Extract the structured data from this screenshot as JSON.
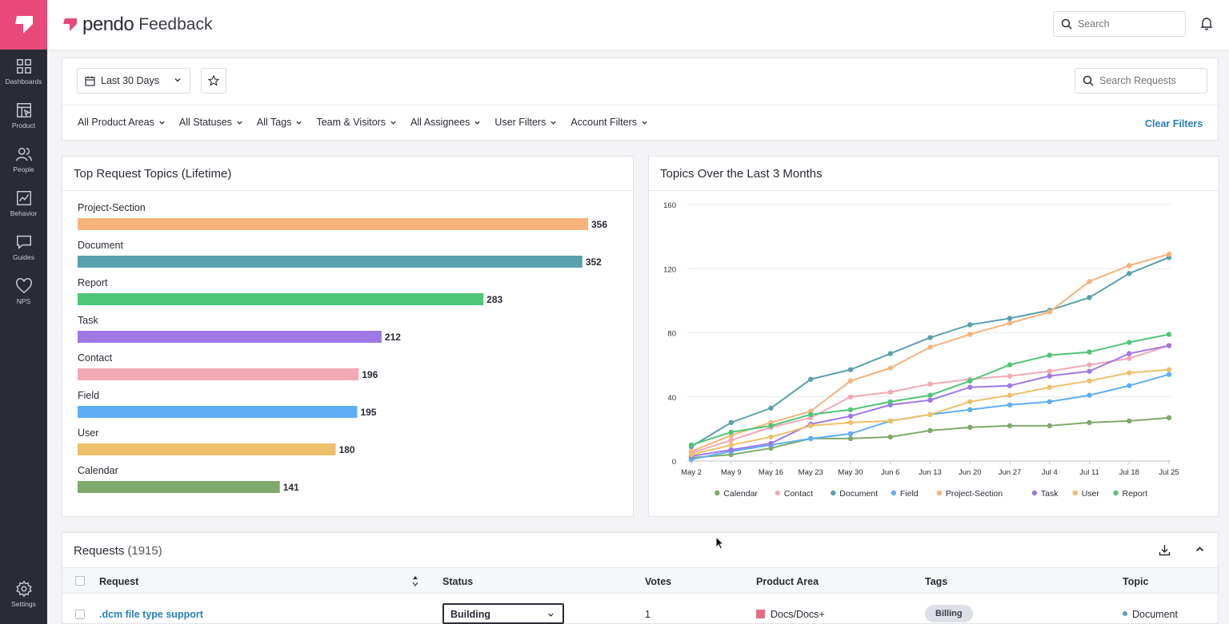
{
  "app": {
    "brand": "pendo",
    "product": "Feedback"
  },
  "sidebar": {
    "items": [
      {
        "label": "Dashboards",
        "icon": "dashboards-icon"
      },
      {
        "label": "Product",
        "icon": "product-icon"
      },
      {
        "label": "People",
        "icon": "people-icon"
      },
      {
        "label": "Behavior",
        "icon": "behavior-icon"
      },
      {
        "label": "Guides",
        "icon": "guides-icon"
      },
      {
        "label": "NPS",
        "icon": "heart-icon"
      }
    ],
    "settings": {
      "label": "Settings",
      "icon": "gear-icon"
    }
  },
  "topbar": {
    "search_placeholder": "Search"
  },
  "filters": {
    "date_range": "Last 30 Days",
    "search_requests_placeholder": "Search Requests",
    "dropdowns": [
      "All Product Areas",
      "All Statuses",
      "All Tags",
      "Team & Visitors",
      "All Assignees",
      "User Filters",
      "Account Filters"
    ],
    "clear": "Clear Filters"
  },
  "panels": {
    "top_topics_title": "Top Request Topics (Lifetime)",
    "over_time_title": "Topics Over the Last 3 Months"
  },
  "chart_data": [
    {
      "type": "bar",
      "orientation": "horizontal",
      "title": "Top Request Topics (Lifetime)",
      "categories": [
        "Project-Section",
        "Document",
        "Report",
        "Task",
        "Contact",
        "Field",
        "User",
        "Calendar"
      ],
      "values": [
        356,
        352,
        283,
        212,
        196,
        195,
        180,
        141
      ],
      "colors": [
        "#f6b37b",
        "#58a1ad",
        "#4ec677",
        "#9f78e6",
        "#f2a9b5",
        "#5eaef3",
        "#eec06a",
        "#7fa96a"
      ]
    },
    {
      "type": "line",
      "title": "Topics Over the Last 3 Months",
      "x": [
        "May 2",
        "May 9",
        "May 16",
        "May 23",
        "May 30",
        "Jun 6",
        "Jun 13",
        "Jun 20",
        "Jun 27",
        "Jul 4",
        "Jul 11",
        "Jul 18",
        "Jul 25"
      ],
      "ylim": [
        0,
        160
      ],
      "yticks": [
        0,
        40,
        80,
        120,
        160
      ],
      "grid": true,
      "legend_position": "bottom",
      "series": [
        {
          "name": "Calendar",
          "color": "#7fa96a",
          "values": [
            2,
            4,
            8,
            14,
            14,
            15,
            19,
            21,
            22,
            22,
            24,
            25,
            27
          ]
        },
        {
          "name": "Contact",
          "color": "#f2a9b5",
          "values": [
            5,
            13,
            21,
            27,
            40,
            43,
            48,
            51,
            53,
            56,
            60,
            64,
            72
          ]
        },
        {
          "name": "Document",
          "color": "#58a1ad",
          "values": [
            9,
            24,
            33,
            51,
            57,
            67,
            77,
            85,
            89,
            94,
            102,
            117,
            127
          ]
        },
        {
          "name": "Field",
          "color": "#5eaef3",
          "values": [
            1,
            6,
            10,
            14,
            17,
            25,
            29,
            32,
            35,
            37,
            41,
            47,
            54
          ]
        },
        {
          "name": "Project-Section",
          "color": "#f6b37b",
          "values": [
            6,
            16,
            24,
            31,
            50,
            58,
            71,
            79,
            86,
            93,
            112,
            122,
            129
          ]
        },
        {
          "name": "Task",
          "color": "#9f78e6",
          "values": [
            3,
            7,
            11,
            23,
            28,
            35,
            38,
            46,
            47,
            53,
            56,
            67,
            72
          ]
        },
        {
          "name": "User",
          "color": "#eec06a",
          "values": [
            4,
            10,
            15,
            22,
            24,
            25,
            29,
            37,
            41,
            46,
            50,
            55,
            57
          ]
        },
        {
          "name": "Report",
          "color": "#4ec677",
          "values": [
            10,
            18,
            22,
            29,
            32,
            37,
            41,
            50,
            60,
            66,
            68,
            74,
            79
          ]
        }
      ]
    }
  ],
  "requests": {
    "title": "Requests",
    "count": "(1915)",
    "columns": [
      "Request",
      "Status",
      "Votes",
      "Product Area",
      "Tags",
      "Topic"
    ],
    "rows": [
      {
        "request": ".dcm file type support",
        "status": "Building",
        "votes": "1",
        "product_area": "Docs/Docs+",
        "tag": "Billing",
        "topic": "Document"
      }
    ]
  }
}
